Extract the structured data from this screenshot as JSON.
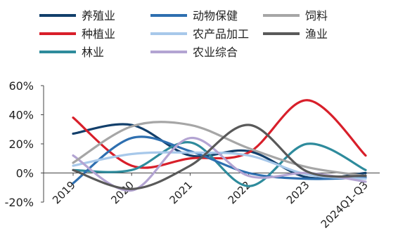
{
  "chart_data": {
    "type": "line",
    "categories": [
      "2019",
      "2020",
      "2021",
      "2022",
      "2023",
      "2024Q1-Q3"
    ],
    "y_ticks": [
      "60%",
      "40%",
      "20%",
      "0%",
      "-20%"
    ],
    "ylim": [
      -20,
      60
    ],
    "grid": false,
    "legend_position": "top",
    "series": [
      {
        "name": "养殖业",
        "color": "#123f6b",
        "values": [
          27,
          33,
          12,
          15,
          -3,
          0
        ]
      },
      {
        "name": "种植业",
        "color": "#d81f2a",
        "values": [
          38,
          5,
          10,
          14,
          50,
          12
        ]
      },
      {
        "name": "林业",
        "color": "#2e8b9c",
        "values": [
          2,
          2,
          21,
          -9,
          20,
          2
        ]
      },
      {
        "name": "动物保健",
        "color": "#2e6fb0",
        "values": [
          -7,
          24,
          15,
          0,
          -4,
          -3
        ]
      },
      {
        "name": "农产品加工",
        "color": "#a7c8ea",
        "values": [
          5,
          13,
          14,
          12,
          -1,
          -4
        ]
      },
      {
        "name": "农业综合",
        "color": "#b3a4d2",
        "values": [
          12,
          -12,
          24,
          -2,
          0,
          -6
        ]
      },
      {
        "name": "饲料",
        "color": "#a6a6a6",
        "values": [
          7,
          32,
          33,
          17,
          4,
          -2
        ]
      },
      {
        "name": "渔业",
        "color": "#595959",
        "values": [
          2,
          -11,
          5,
          33,
          1,
          -2
        ]
      }
    ]
  }
}
